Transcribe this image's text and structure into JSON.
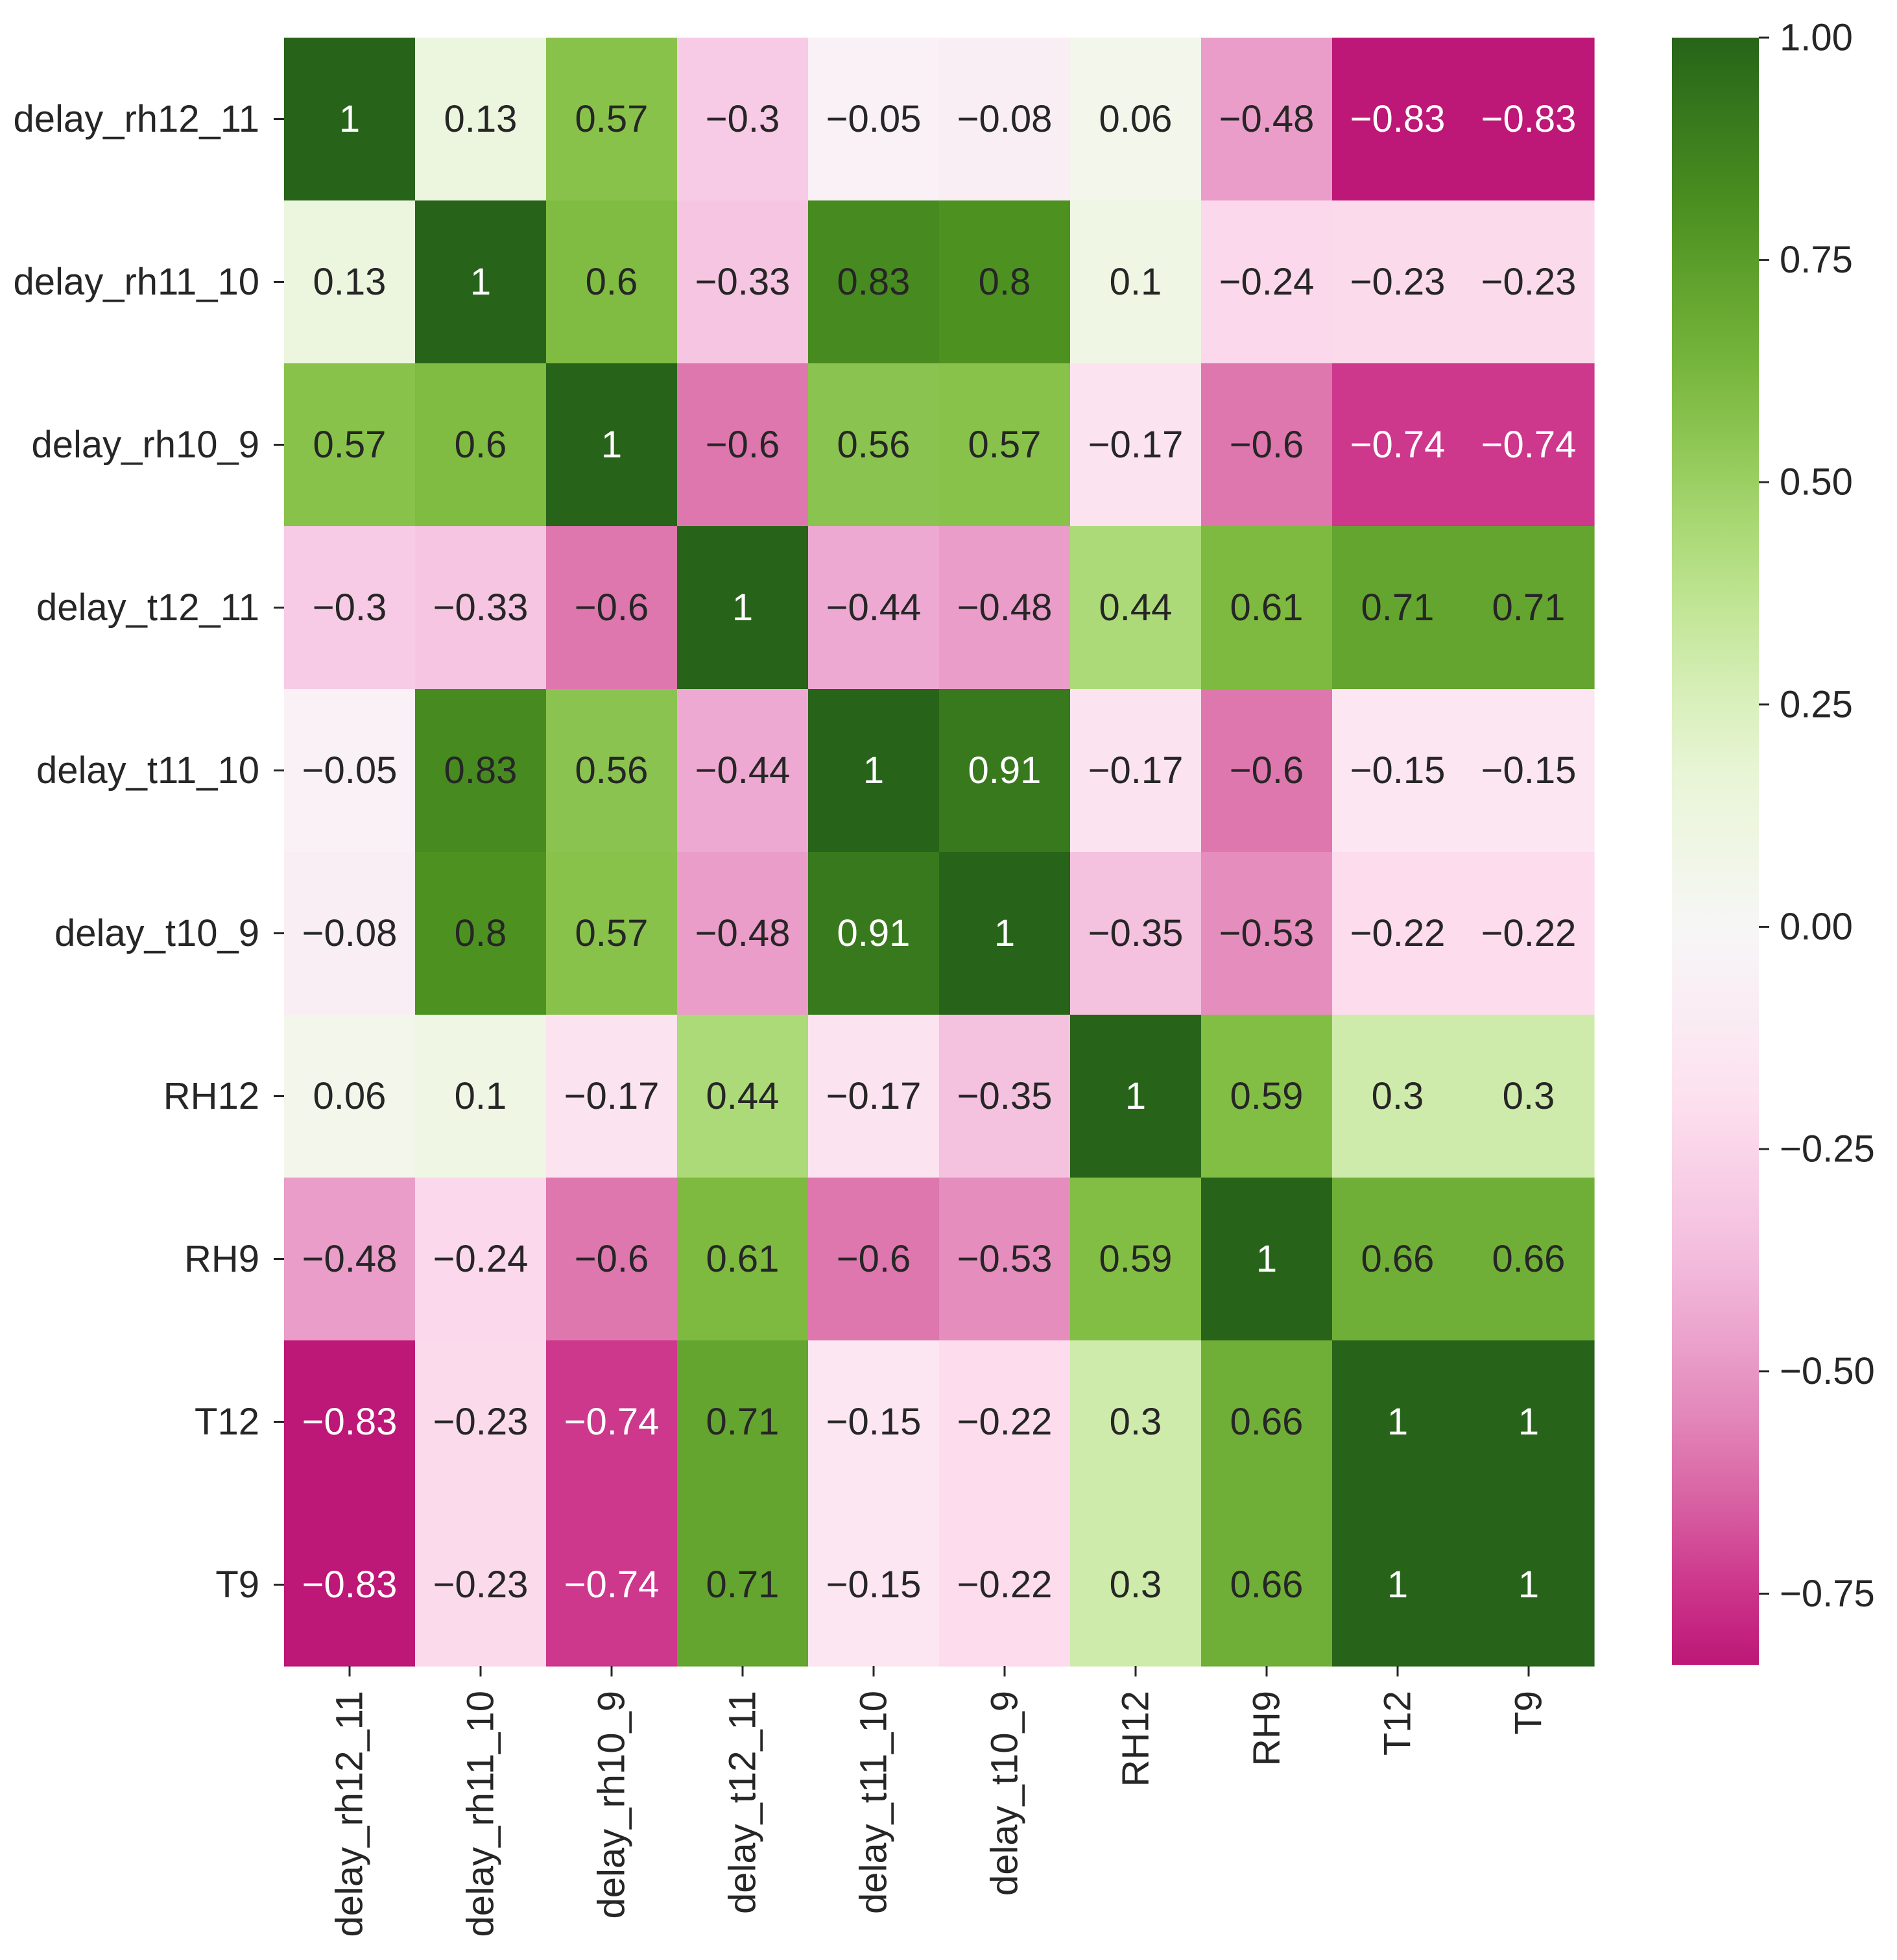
{
  "chart_data": {
    "type": "heatmap",
    "title": "",
    "xlabel": "",
    "ylabel": "",
    "row_labels": [
      "delay_rh12_11",
      "delay_rh11_10",
      "delay_rh10_9",
      "delay_t12_11",
      "delay_t11_10",
      "delay_t10_9",
      "RH12",
      "RH9",
      "T12",
      "T9"
    ],
    "col_labels": [
      "delay_rh12_11",
      "delay_rh11_10",
      "delay_rh10_9",
      "delay_t12_11",
      "delay_t11_10",
      "delay_t10_9",
      "RH12",
      "RH9",
      "T12",
      "T9"
    ],
    "values": [
      [
        1,
        0.13,
        0.57,
        -0.3,
        -0.05,
        -0.08,
        0.06,
        -0.48,
        -0.83,
        -0.83
      ],
      [
        0.13,
        1,
        0.6,
        -0.33,
        0.83,
        0.8,
        0.1,
        -0.24,
        -0.23,
        -0.23
      ],
      [
        0.57,
        0.6,
        1,
        -0.6,
        0.56,
        0.57,
        -0.17,
        -0.6,
        -0.74,
        -0.74
      ],
      [
        -0.3,
        -0.33,
        -0.6,
        1,
        -0.44,
        -0.48,
        0.44,
        0.61,
        0.71,
        0.71
      ],
      [
        -0.05,
        0.83,
        0.56,
        -0.44,
        1,
        0.91,
        -0.17,
        -0.6,
        -0.15,
        -0.15
      ],
      [
        -0.08,
        0.8,
        0.57,
        -0.48,
        0.91,
        1,
        -0.35,
        -0.53,
        -0.22,
        -0.22
      ],
      [
        0.06,
        0.1,
        -0.17,
        0.44,
        -0.17,
        -0.35,
        1,
        0.59,
        0.3,
        0.3
      ],
      [
        -0.48,
        -0.24,
        -0.6,
        0.61,
        -0.6,
        -0.53,
        0.59,
        1,
        0.66,
        0.66
      ],
      [
        -0.83,
        -0.23,
        -0.74,
        0.71,
        -0.15,
        -0.22,
        0.3,
        0.66,
        1,
        1
      ],
      [
        -0.83,
        -0.23,
        -0.74,
        0.71,
        -0.15,
        -0.22,
        0.3,
        0.66,
        1,
        1
      ]
    ],
    "colormap": "PiYG",
    "vmin": -0.83,
    "vmax": 1.0,
    "colorbar": {
      "ticks": [
        1.0,
        0.75,
        0.5,
        0.25,
        0.0,
        -0.25,
        -0.5,
        -0.75
      ],
      "tick_labels": [
        "1.00",
        "0.75",
        "0.50",
        "0.25",
        "0.00",
        "−0.25",
        "−0.50",
        "−0.75"
      ]
    },
    "annotations": true
  }
}
